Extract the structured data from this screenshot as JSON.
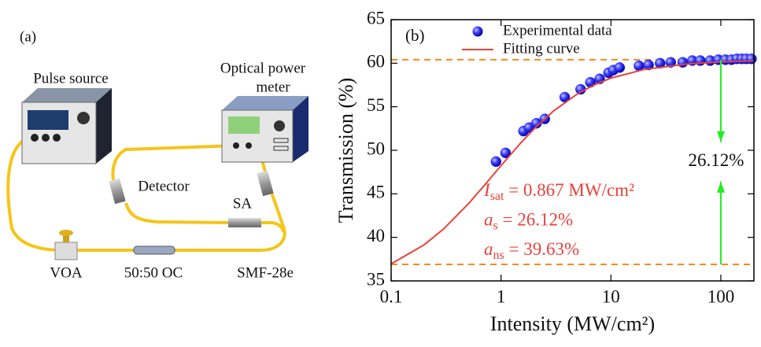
{
  "diagram": {
    "panel_label": "(a)",
    "labels": {
      "pulse_source": "Pulse source",
      "power_meter_1": "Optical power",
      "power_meter_2": "meter",
      "detector": "Detector",
      "sa": "SA",
      "voa": "VOA",
      "coupler": "50:50 OC",
      "fiber": "SMF-28e"
    }
  },
  "chart_data": {
    "type": "scatter",
    "panel_label": "(b)",
    "x_label": "Intensity (MW/cm²)",
    "y_label": "Transmission (%)",
    "x_scale": "log",
    "xlim": [
      0.1,
      200
    ],
    "xticks": [
      0.1,
      1,
      10,
      100
    ],
    "ylim": [
      35,
      65
    ],
    "yticks": [
      35,
      40,
      45,
      50,
      55,
      60,
      65
    ],
    "legend": "upper left",
    "series": [
      {
        "name": "Experimental data",
        "type": "scatter",
        "color": "#1a1aff",
        "x": [
          0.9,
          1.1,
          1.6,
          1.8,
          2.1,
          2.5,
          3.8,
          5.3,
          6.5,
          7.9,
          9.5,
          10.5,
          12,
          18,
          22,
          28,
          35,
          45,
          55,
          65,
          80,
          95,
          110,
          125,
          140,
          155,
          170,
          190
        ],
        "values": [
          48.7,
          49.7,
          52.2,
          52.6,
          53.1,
          53.6,
          56.1,
          57.0,
          57.8,
          58.2,
          58.9,
          59.2,
          59.5,
          59.7,
          59.8,
          60.0,
          60.1,
          60.1,
          60.3,
          60.3,
          60.3,
          60.4,
          60.4,
          60.4,
          60.5,
          60.5,
          60.5,
          60.5
        ]
      },
      {
        "name": "Fitting curve",
        "type": "line",
        "color": "#e8423a",
        "x": [
          0.1,
          0.2,
          0.3,
          0.5,
          0.7,
          1,
          1.5,
          2,
          3,
          5,
          7,
          10,
          20,
          50,
          100,
          200
        ],
        "values": [
          36.95,
          39.15,
          40.96,
          43.8,
          45.92,
          48.24,
          50.8,
          52.47,
          54.51,
          56.51,
          57.49,
          58.29,
          59.28,
          59.92,
          60.15,
          60.26
        ]
      }
    ],
    "hlines": [
      60.4,
      36.9
    ],
    "hline_color": "#f28c1e",
    "arrow_x": 100,
    "arrow_color": "#22ee22",
    "arrow_label": "26.12%",
    "annotations": [
      {
        "symbol": "I",
        "sub": "sat",
        "text": " = 0.867 MW/cm²"
      },
      {
        "symbol": "a",
        "sub": "s",
        "text": " = 26.12%"
      },
      {
        "symbol": "a",
        "sub": "ns",
        "text": " = 39.63%"
      }
    ],
    "annotation_color": "#e8423a"
  }
}
